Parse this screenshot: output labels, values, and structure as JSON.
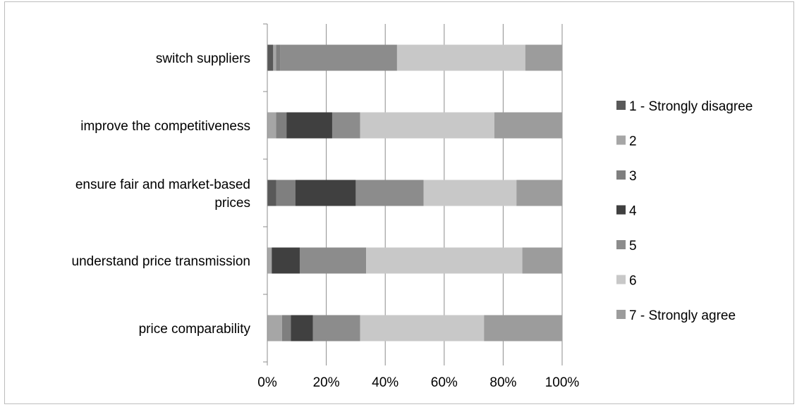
{
  "chart_data": {
    "type": "bar",
    "orientation": "horizontal",
    "stacked": "percent",
    "title": "",
    "xlabel": "",
    "ylabel": "",
    "xlim": [
      0,
      100
    ],
    "x_ticks": [
      "0%",
      "20%",
      "40%",
      "60%",
      "80%",
      "100%"
    ],
    "grid": "vertical",
    "legend_position": "right",
    "categories": [
      [
        "switch suppliers"
      ],
      [
        "improve the competitiveness"
      ],
      [
        "ensure fair and market-based",
        "prices"
      ],
      [
        "understand price transmission"
      ],
      [
        "price comparability"
      ]
    ],
    "series": [
      {
        "name": "1 - Strongly disagree",
        "color": "#595959",
        "values": [
          2,
          0,
          3,
          0,
          0
        ]
      },
      {
        "name": "2",
        "color": "#a6a6a6",
        "values": [
          1,
          3,
          0,
          1.5,
          5
        ]
      },
      {
        "name": "3",
        "color": "#7f7f7f",
        "values": [
          1.5,
          3.5,
          6.5,
          0,
          3
        ]
      },
      {
        "name": "4",
        "color": "#404040",
        "values": [
          0,
          15.5,
          20.5,
          9.5,
          7.5
        ]
      },
      {
        "name": "5",
        "color": "#8c8c8c",
        "values": [
          39.5,
          9.5,
          23,
          22.5,
          16
        ]
      },
      {
        "name": "6",
        "color": "#c8c8c8",
        "values": [
          43.5,
          45.5,
          31.5,
          53,
          42
        ]
      },
      {
        "name": "7 - Strongly agree",
        "color": "#9c9c9c",
        "values": [
          12.5,
          23,
          15.5,
          13.5,
          26.5
        ]
      }
    ]
  }
}
